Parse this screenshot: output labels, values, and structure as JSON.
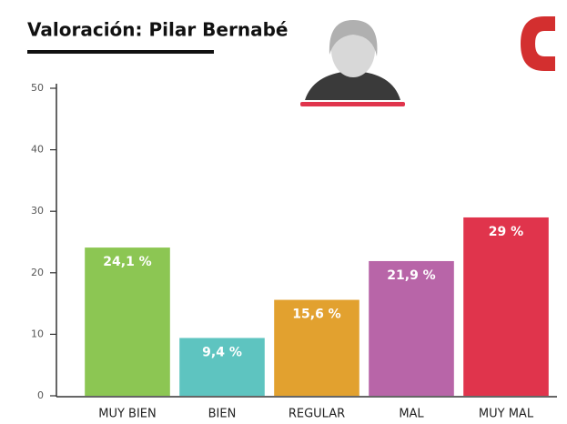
{
  "chart_data": {
    "type": "bar",
    "title": "Valoración: Pilar Bernabé",
    "categories": [
      "MUY BIEN",
      "BIEN",
      "REGULAR",
      "MAL",
      "MUY MAL"
    ],
    "values": [
      24.1,
      9.4,
      15.6,
      21.9,
      29
    ],
    "value_labels": [
      "24,1 %",
      "9,4 %",
      "15,6 %",
      "21,9 %",
      "29 %"
    ],
    "colors": [
      "#8cc653",
      "#5ec4c0",
      "#e2a12f",
      "#b865a8",
      "#e0344c"
    ],
    "ylim": [
      0,
      50
    ],
    "yticks": [
      0,
      10,
      20,
      30,
      40,
      50
    ],
    "grid": false
  }
}
